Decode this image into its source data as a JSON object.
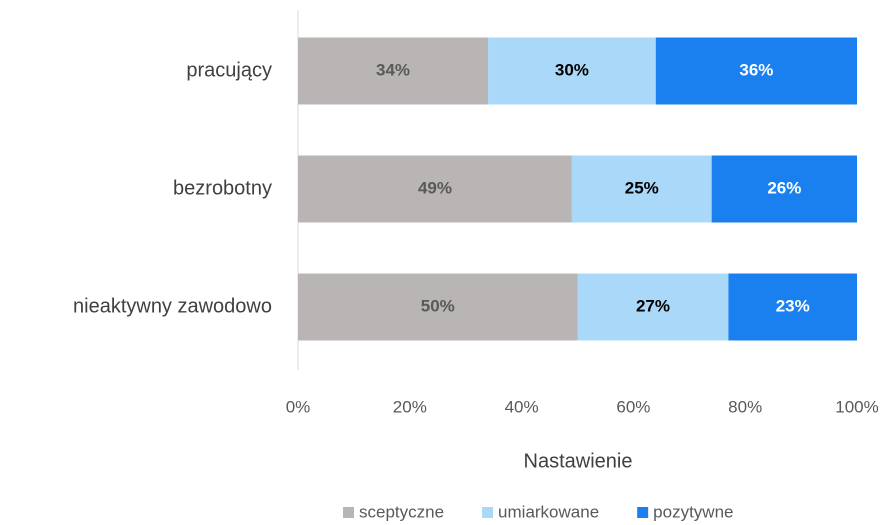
{
  "chart_data": {
    "type": "stacked_barh",
    "categories": [
      "pracujący",
      "bezrobotny",
      "nieaktywny zawodowo"
    ],
    "series": [
      {
        "name": "sceptyczne",
        "color": "#b8b5b4",
        "values": [
          34,
          49,
          50
        ],
        "value_labels": [
          "34%",
          "49%",
          "50%"
        ]
      },
      {
        "name": "umiarkowane",
        "color": "#aad8f8",
        "values": [
          30,
          25,
          27
        ],
        "value_labels": [
          "30%",
          "25%",
          "27%"
        ]
      },
      {
        "name": "pozytywne",
        "color": "#1a80f0",
        "values": [
          36,
          26,
          23
        ],
        "value_labels": [
          "36%",
          "26%",
          "23%"
        ]
      }
    ],
    "xlim": [
      0,
      100
    ],
    "xticks": [
      {
        "value": 0,
        "label": "0%"
      },
      {
        "value": 20,
        "label": "20%"
      },
      {
        "value": 40,
        "label": "40%"
      },
      {
        "value": 60,
        "label": "60%"
      },
      {
        "value": 80,
        "label": "80%"
      },
      {
        "value": 100,
        "label": "100%"
      }
    ],
    "xlabel": "Nastawienie",
    "legend": "bottom"
  }
}
